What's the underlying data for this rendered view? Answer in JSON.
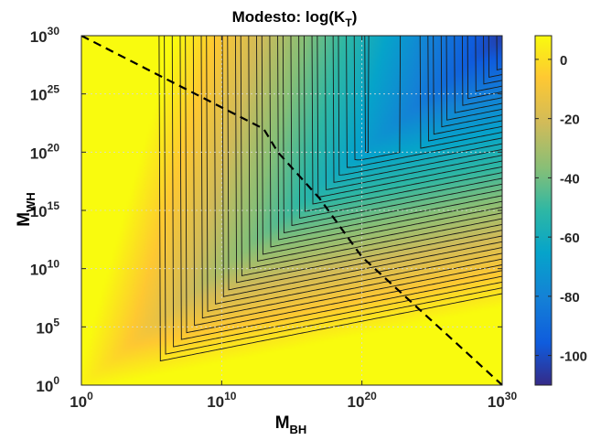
{
  "chart_data": {
    "type": "heatmap",
    "title_main": "Modesto: log(K",
    "title_sub": "T",
    "title_close": ")",
    "xlabel_main": "M",
    "xlabel_sub": "BH",
    "ylabel_main": "M",
    "ylabel_sub": "WH",
    "x_scale": "log",
    "y_scale": "log",
    "xlim": [
      1,
      1e+30
    ],
    "ylim": [
      1,
      1e+30
    ],
    "x_ticks": [
      {
        "value": 1,
        "base": "10",
        "exp": "0"
      },
      {
        "value": 10000000000.0,
        "base": "10",
        "exp": "10"
      },
      {
        "value": 1e+20,
        "base": "10",
        "exp": "20"
      },
      {
        "value": 1e+30,
        "base": "10",
        "exp": "30"
      }
    ],
    "y_ticks": [
      {
        "value": 1,
        "base": "10",
        "exp": "0"
      },
      {
        "value": 100000.0,
        "base": "10",
        "exp": "5"
      },
      {
        "value": 10000000000.0,
        "base": "10",
        "exp": "10"
      },
      {
        "value": 1000000000000000.0,
        "base": "10",
        "exp": "15"
      },
      {
        "value": 1e+20,
        "base": "10",
        "exp": "20"
      },
      {
        "value": 1e+25,
        "base": "10",
        "exp": "25"
      },
      {
        "value": 1e+30,
        "base": "10",
        "exp": "30"
      }
    ],
    "grid": true,
    "colormap": "parula",
    "colorbar": {
      "range": [
        -110,
        8
      ],
      "ticks": [
        {
          "value": 0,
          "label": "0"
        },
        {
          "value": -20,
          "label": "-20"
        },
        {
          "value": -40,
          "label": "-40"
        },
        {
          "value": -60,
          "label": "-60"
        },
        {
          "value": -80,
          "label": "-80"
        },
        {
          "value": -100,
          "label": "-100"
        }
      ]
    },
    "dashed_line": {
      "color": "#000000",
      "points": [
        [
          1,
          1e+30
        ],
        [
          10000000000000.0,
          1e+22
        ],
        [
          100000000000000.0,
          1e+20
        ],
        [
          1e+17,
          1e+16
        ],
        [
          1e+20,
          100000000000.0
        ],
        [
          1e+30,
          1
        ]
      ]
    }
  }
}
